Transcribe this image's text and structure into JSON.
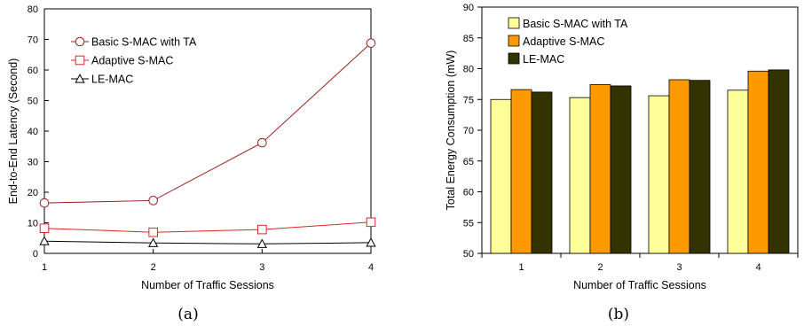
{
  "chart_data": [
    {
      "type": "line",
      "caption": "(a)",
      "xlabel": "Number of Traffic Sessions",
      "ylabel": "End-to-End Latency (Second)",
      "x": [
        1,
        2,
        3,
        4
      ],
      "xlim": [
        1,
        4
      ],
      "ylim": [
        0,
        80
      ],
      "yticks": [
        0,
        10,
        20,
        30,
        40,
        50,
        60,
        70,
        80
      ],
      "legend_position": "top-left",
      "series": [
        {
          "name": "Basic S-MAC with TA",
          "values": [
            16.5,
            17.3,
            36.2,
            68.8
          ],
          "color": "#9a1f1f",
          "marker": "circle"
        },
        {
          "name": "Adaptive S-MAC",
          "values": [
            8.2,
            6.9,
            7.8,
            10.2
          ],
          "color": "#e02424",
          "marker": "square"
        },
        {
          "name": "LE-MAC",
          "values": [
            4.0,
            3.4,
            3.1,
            3.5
          ],
          "color": "#000000",
          "marker": "triangle"
        }
      ]
    },
    {
      "type": "bar",
      "caption": "(b)",
      "xlabel": "Number of Traffic Sessions",
      "ylabel": "Total Energy Consumption (mW)",
      "categories": [
        "1",
        "2",
        "3",
        "4"
      ],
      "ylim": [
        50,
        90
      ],
      "yticks": [
        50,
        55,
        60,
        65,
        70,
        75,
        80,
        85,
        90
      ],
      "legend_position": "top-left",
      "series": [
        {
          "name": "Basic S-MAC with TA",
          "values": [
            75.0,
            75.3,
            75.6,
            76.5
          ],
          "color": "#ffff99"
        },
        {
          "name": "Adaptive S-MAC",
          "values": [
            76.6,
            77.4,
            78.2,
            79.6
          ],
          "color": "#ff9900"
        },
        {
          "name": "LE-MAC",
          "values": [
            76.2,
            77.2,
            78.1,
            79.8
          ],
          "color": "#333300"
        }
      ]
    }
  ]
}
